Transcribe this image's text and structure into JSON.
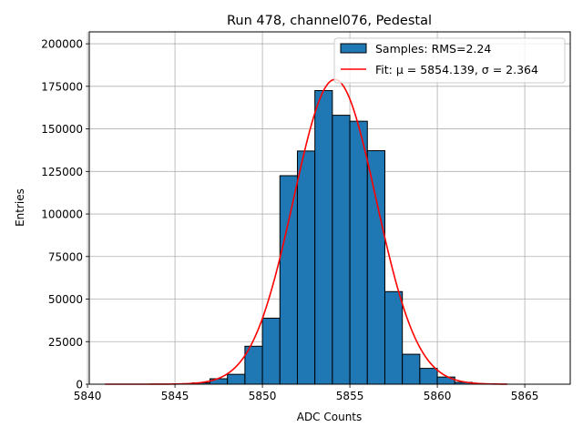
{
  "chart_data": {
    "type": "bar",
    "title": "Run 478, channel076, Pedestal",
    "xlabel": "ADC Counts",
    "ylabel": "Entries",
    "xlim": [
      5840.1,
      5867.6
    ],
    "ylim": [
      0,
      207000
    ],
    "xticks": [
      5840,
      5845,
      5850,
      5855,
      5860,
      5865
    ],
    "xtick_labels": [
      "5840",
      "5845",
      "5850",
      "5855",
      "5860",
      "5865"
    ],
    "yticks": [
      0,
      25000,
      50000,
      75000,
      100000,
      125000,
      150000,
      175000,
      200000
    ],
    "ytick_labels": [
      "0",
      "25000",
      "50000",
      "75000",
      "100000",
      "125000",
      "150000",
      "175000",
      "200000"
    ],
    "grid": true,
    "legend_position": "top-right",
    "colors": {
      "bars": "#1f77b4",
      "bar_edge": "#000000",
      "fit": "#ff0000",
      "grid": "#b0b0b0"
    },
    "histogram": {
      "name": "Samples: RMS=2.24",
      "bins": [
        {
          "x0": 5846,
          "x1": 5847,
          "count": 800
        },
        {
          "x0": 5847,
          "x1": 5848,
          "count": 3200
        },
        {
          "x0": 5848,
          "x1": 5849,
          "count": 5800
        },
        {
          "x0": 5849,
          "x1": 5850,
          "count": 22300
        },
        {
          "x0": 5850,
          "x1": 5851,
          "count": 38800
        },
        {
          "x0": 5851,
          "x1": 5852,
          "count": 122500
        },
        {
          "x0": 5852,
          "x1": 5853,
          "count": 137000
        },
        {
          "x0": 5853,
          "x1": 5854,
          "count": 172500
        },
        {
          "x0": 5854,
          "x1": 5855,
          "count": 158000
        },
        {
          "x0": 5855,
          "x1": 5856,
          "count": 154500
        },
        {
          "x0": 5856,
          "x1": 5857,
          "count": 137200
        },
        {
          "x0": 5857,
          "x1": 5858,
          "count": 54400
        },
        {
          "x0": 5858,
          "x1": 5859,
          "count": 17600
        },
        {
          "x0": 5859,
          "x1": 5860,
          "count": 9300
        },
        {
          "x0": 5860,
          "x1": 5861,
          "count": 4200
        },
        {
          "x0": 5861,
          "x1": 5862,
          "count": 1100
        }
      ]
    },
    "fit": {
      "name": "Fit: μ = 5854.139, σ = 2.364",
      "mu": 5854.139,
      "sigma": 2.364,
      "amplitude": 179000,
      "x_range": [
        5841,
        5864
      ]
    }
  }
}
